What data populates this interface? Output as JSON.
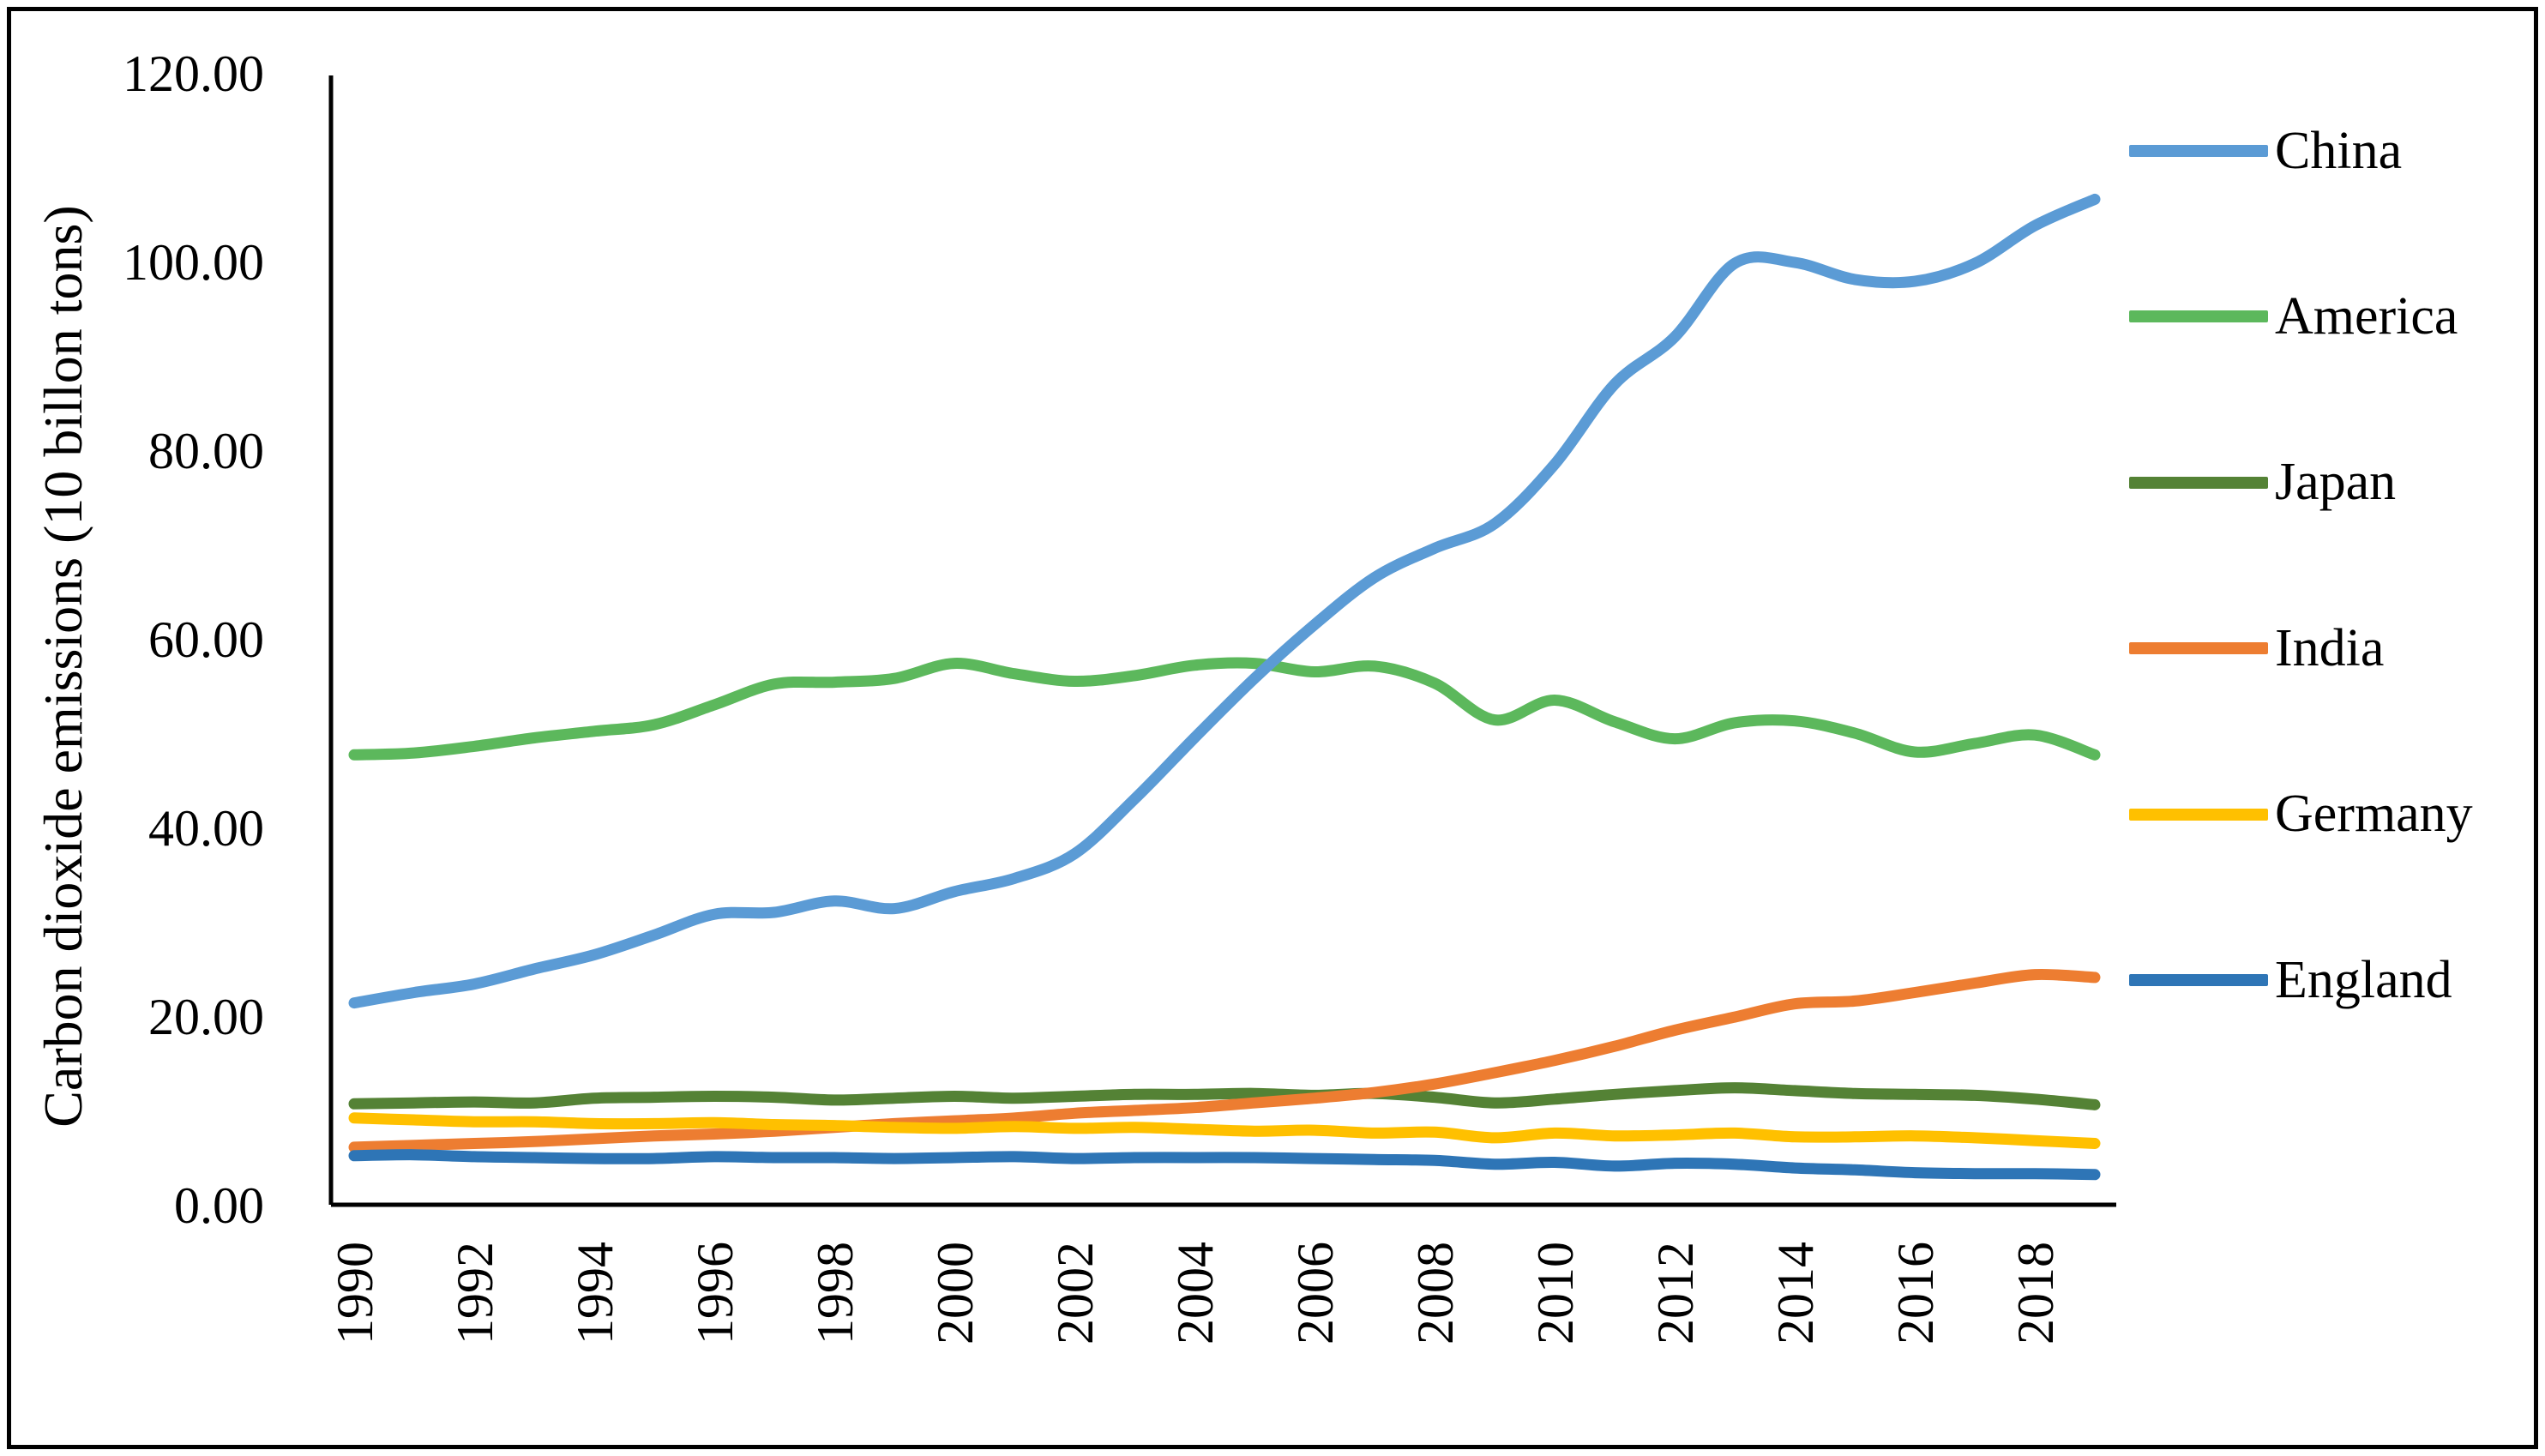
{
  "chart_data": {
    "type": "line",
    "title": "",
    "xlabel": "",
    "ylabel": "Carbon dioxide emissions (10 billon tons)",
    "x": [
      1990,
      1991,
      1992,
      1993,
      1994,
      1995,
      1996,
      1997,
      1998,
      1999,
      2000,
      2001,
      2002,
      2003,
      2004,
      2005,
      2006,
      2007,
      2008,
      2009,
      2010,
      2011,
      2012,
      2013,
      2014,
      2015,
      2016,
      2017,
      2018,
      2019
    ],
    "x_tick_labels": [
      "1990",
      "1992",
      "1994",
      "1996",
      "1998",
      "2000",
      "2002",
      "2004",
      "2006",
      "2008",
      "2010",
      "2012",
      "2014",
      "2016",
      "2018"
    ],
    "y_tick_labels": [
      "0.00",
      "20.00",
      "40.00",
      "60.00",
      "80.00",
      "100.00",
      "120.00"
    ],
    "ylim": [
      0,
      120
    ],
    "y_tick_step": 20,
    "grid": false,
    "legend_position": "right",
    "line_style": "smooth",
    "series": [
      {
        "name": "China",
        "color": "#5B9BD5",
        "values": [
          21.4,
          22.5,
          23.4,
          25.0,
          26.5,
          28.6,
          30.8,
          31.0,
          32.2,
          31.4,
          33.2,
          34.6,
          37.2,
          43.0,
          49.5,
          55.8,
          61.5,
          66.5,
          69.6,
          72.2,
          78.5,
          87.0,
          92.0,
          99.8,
          99.9,
          98.1,
          97.9,
          99.8,
          103.8,
          106.6
        ]
      },
      {
        "name": "America",
        "color": "#5CB85C",
        "values": [
          47.7,
          47.9,
          48.6,
          49.5,
          50.2,
          50.9,
          53.0,
          55.2,
          55.4,
          55.8,
          57.4,
          56.3,
          55.5,
          56.1,
          57.2,
          57.4,
          56.5,
          57.1,
          55.3,
          51.4,
          53.5,
          51.2,
          49.4,
          51.1,
          51.3,
          50.0,
          48.0,
          48.9,
          49.8,
          47.7
        ]
      },
      {
        "name": "Japan",
        "color": "#548235",
        "values": [
          10.7,
          10.8,
          10.9,
          10.8,
          11.3,
          11.4,
          11.5,
          11.4,
          11.1,
          11.3,
          11.5,
          11.3,
          11.5,
          11.7,
          11.7,
          11.8,
          11.6,
          11.8,
          11.4,
          10.8,
          11.2,
          11.7,
          12.1,
          12.4,
          12.1,
          11.8,
          11.7,
          11.6,
          11.2,
          10.6
        ]
      },
      {
        "name": "India",
        "color": "#ED7D31",
        "values": [
          6.1,
          6.3,
          6.5,
          6.7,
          7.0,
          7.3,
          7.5,
          7.8,
          8.2,
          8.6,
          8.9,
          9.2,
          9.7,
          10.0,
          10.3,
          10.8,
          11.3,
          11.9,
          12.8,
          14.0,
          15.3,
          16.8,
          18.5,
          19.9,
          21.3,
          21.6,
          22.5,
          23.5,
          24.4,
          24.1
        ]
      },
      {
        "name": "Germany",
        "color": "#FFC000",
        "values": [
          9.2,
          9.0,
          8.8,
          8.8,
          8.6,
          8.6,
          8.7,
          8.5,
          8.4,
          8.2,
          8.1,
          8.3,
          8.1,
          8.2,
          8.0,
          7.8,
          7.9,
          7.6,
          7.7,
          7.1,
          7.6,
          7.3,
          7.4,
          7.6,
          7.2,
          7.2,
          7.3,
          7.1,
          6.8,
          6.5
        ]
      },
      {
        "name": "England",
        "color": "#2E75B6",
        "values": [
          5.2,
          5.3,
          5.1,
          5.0,
          4.9,
          4.9,
          5.1,
          5.0,
          5.0,
          4.9,
          5.0,
          5.1,
          4.9,
          5.0,
          5.0,
          5.0,
          4.9,
          4.8,
          4.7,
          4.3,
          4.5,
          4.1,
          4.4,
          4.3,
          3.9,
          3.7,
          3.4,
          3.3,
          3.3,
          3.2
        ]
      }
    ],
    "draw_order": [
      "America",
      "Japan",
      "India",
      "Germany",
      "England",
      "China"
    ],
    "axis_color": "#000000",
    "text_color": "#000000"
  }
}
